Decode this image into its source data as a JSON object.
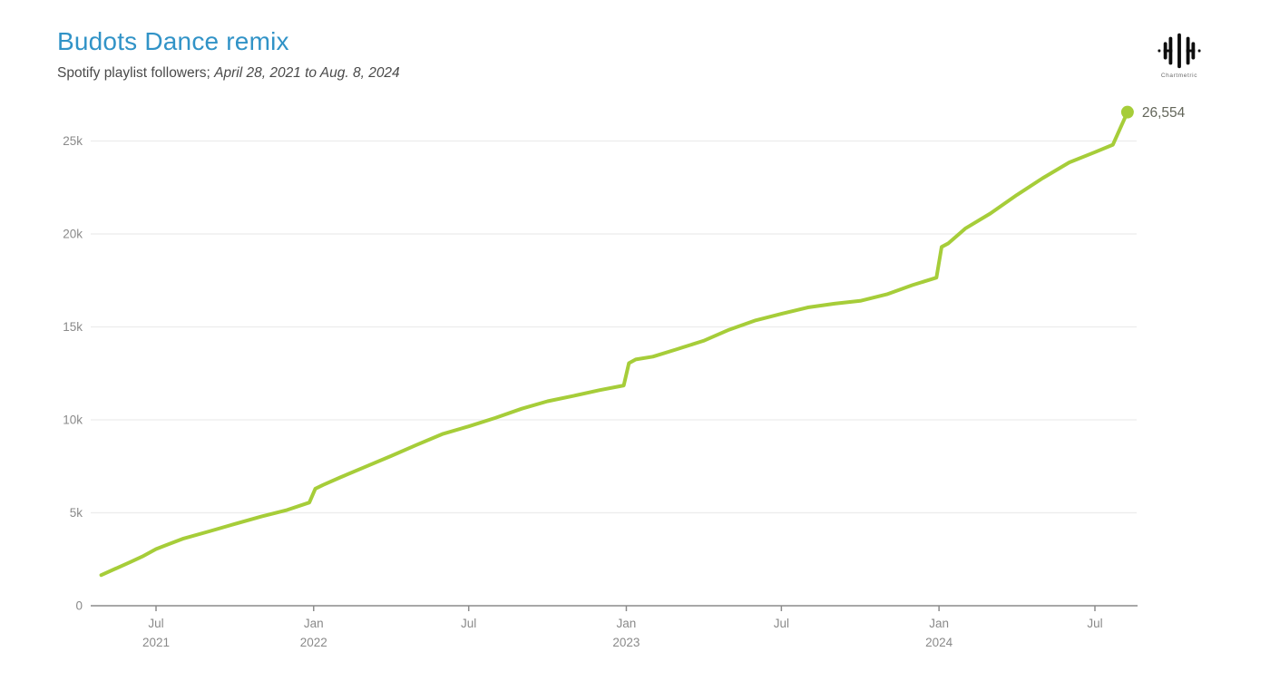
{
  "header": {
    "title": "Budots Dance remix",
    "subtitle_prefix": "Spotify playlist followers; ",
    "subtitle_range": "April 28, 2021 to Aug. 8, 2024"
  },
  "logo": {
    "name": "Chartmetric"
  },
  "chart_data": {
    "type": "line",
    "title": "Budots Dance remix",
    "subtitle": "Spotify playlist followers; April 28, 2021 to Aug. 8, 2024",
    "legend": "none",
    "grid": "horizontal",
    "x_range": [
      "2021-04-28",
      "2024-08-08"
    ],
    "ylim": [
      0,
      27500
    ],
    "end_label": "26,554",
    "final_value": 26554,
    "y_ticks": [
      {
        "value": 0,
        "label": "0"
      },
      {
        "value": 5000,
        "label": "5k"
      },
      {
        "value": 10000,
        "label": "10k"
      },
      {
        "value": 15000,
        "label": "15k"
      },
      {
        "value": 20000,
        "label": "20k"
      },
      {
        "value": 25000,
        "label": "25k"
      }
    ],
    "x_ticks": [
      {
        "date": "2021-07-01",
        "label": "Jul",
        "year": "2021"
      },
      {
        "date": "2022-01-01",
        "label": "Jan",
        "year": "2022"
      },
      {
        "date": "2022-07-01",
        "label": "Jul",
        "year": ""
      },
      {
        "date": "2023-01-01",
        "label": "Jan",
        "year": "2023"
      },
      {
        "date": "2023-07-01",
        "label": "Jul",
        "year": ""
      },
      {
        "date": "2024-01-01",
        "label": "Jan",
        "year": "2024"
      },
      {
        "date": "2024-07-01",
        "label": "Jul",
        "year": ""
      }
    ],
    "series": [
      {
        "name": "Spotify playlist followers",
        "points": [
          [
            "2021-04-28",
            1650
          ],
          [
            "2021-05-15",
            2000
          ],
          [
            "2021-06-01",
            2350
          ],
          [
            "2021-06-15",
            2650
          ],
          [
            "2021-07-01",
            3050
          ],
          [
            "2021-07-15",
            3300
          ],
          [
            "2021-08-01",
            3600
          ],
          [
            "2021-09-01",
            4000
          ],
          [
            "2021-10-01",
            4400
          ],
          [
            "2021-11-01",
            4800
          ],
          [
            "2021-12-01",
            5150
          ],
          [
            "2021-12-27",
            5550
          ],
          [
            "2022-01-03",
            6300
          ],
          [
            "2022-01-12",
            6500
          ],
          [
            "2022-02-01",
            6900
          ],
          [
            "2022-03-01",
            7450
          ],
          [
            "2022-04-01",
            8050
          ],
          [
            "2022-05-01",
            8650
          ],
          [
            "2022-06-01",
            9250
          ],
          [
            "2022-07-01",
            9650
          ],
          [
            "2022-08-01",
            10100
          ],
          [
            "2022-09-01",
            10600
          ],
          [
            "2022-10-01",
            11000
          ],
          [
            "2022-11-01",
            11300
          ],
          [
            "2022-12-01",
            11600
          ],
          [
            "2022-12-29",
            11850
          ],
          [
            "2023-01-04",
            13050
          ],
          [
            "2023-01-12",
            13250
          ],
          [
            "2023-02-01",
            13400
          ],
          [
            "2023-03-01",
            13800
          ],
          [
            "2023-04-01",
            14250
          ],
          [
            "2023-05-01",
            14850
          ],
          [
            "2023-06-01",
            15350
          ],
          [
            "2023-07-01",
            15700
          ],
          [
            "2023-08-01",
            16050
          ],
          [
            "2023-09-01",
            16250
          ],
          [
            "2023-10-01",
            16400
          ],
          [
            "2023-11-01",
            16750
          ],
          [
            "2023-12-01",
            17250
          ],
          [
            "2023-12-29",
            17650
          ],
          [
            "2024-01-04",
            19300
          ],
          [
            "2024-01-12",
            19500
          ],
          [
            "2024-02-01",
            20300
          ],
          [
            "2024-03-01",
            21100
          ],
          [
            "2024-04-01",
            22100
          ],
          [
            "2024-05-01",
            23000
          ],
          [
            "2024-06-01",
            23850
          ],
          [
            "2024-07-01",
            24400
          ],
          [
            "2024-07-22",
            24800
          ],
          [
            "2024-08-08",
            26554
          ]
        ]
      }
    ],
    "colors": {
      "line": "#a6cd39",
      "dot": "#a6cd39",
      "title": "#3193c7",
      "subtitle": "#4a4a4a",
      "axis_text": "#8a8a8a",
      "axis_line": "#8c8c8c",
      "grid": "#ececec",
      "annotation": "#63665a",
      "logo": "#0d0d0d"
    }
  }
}
